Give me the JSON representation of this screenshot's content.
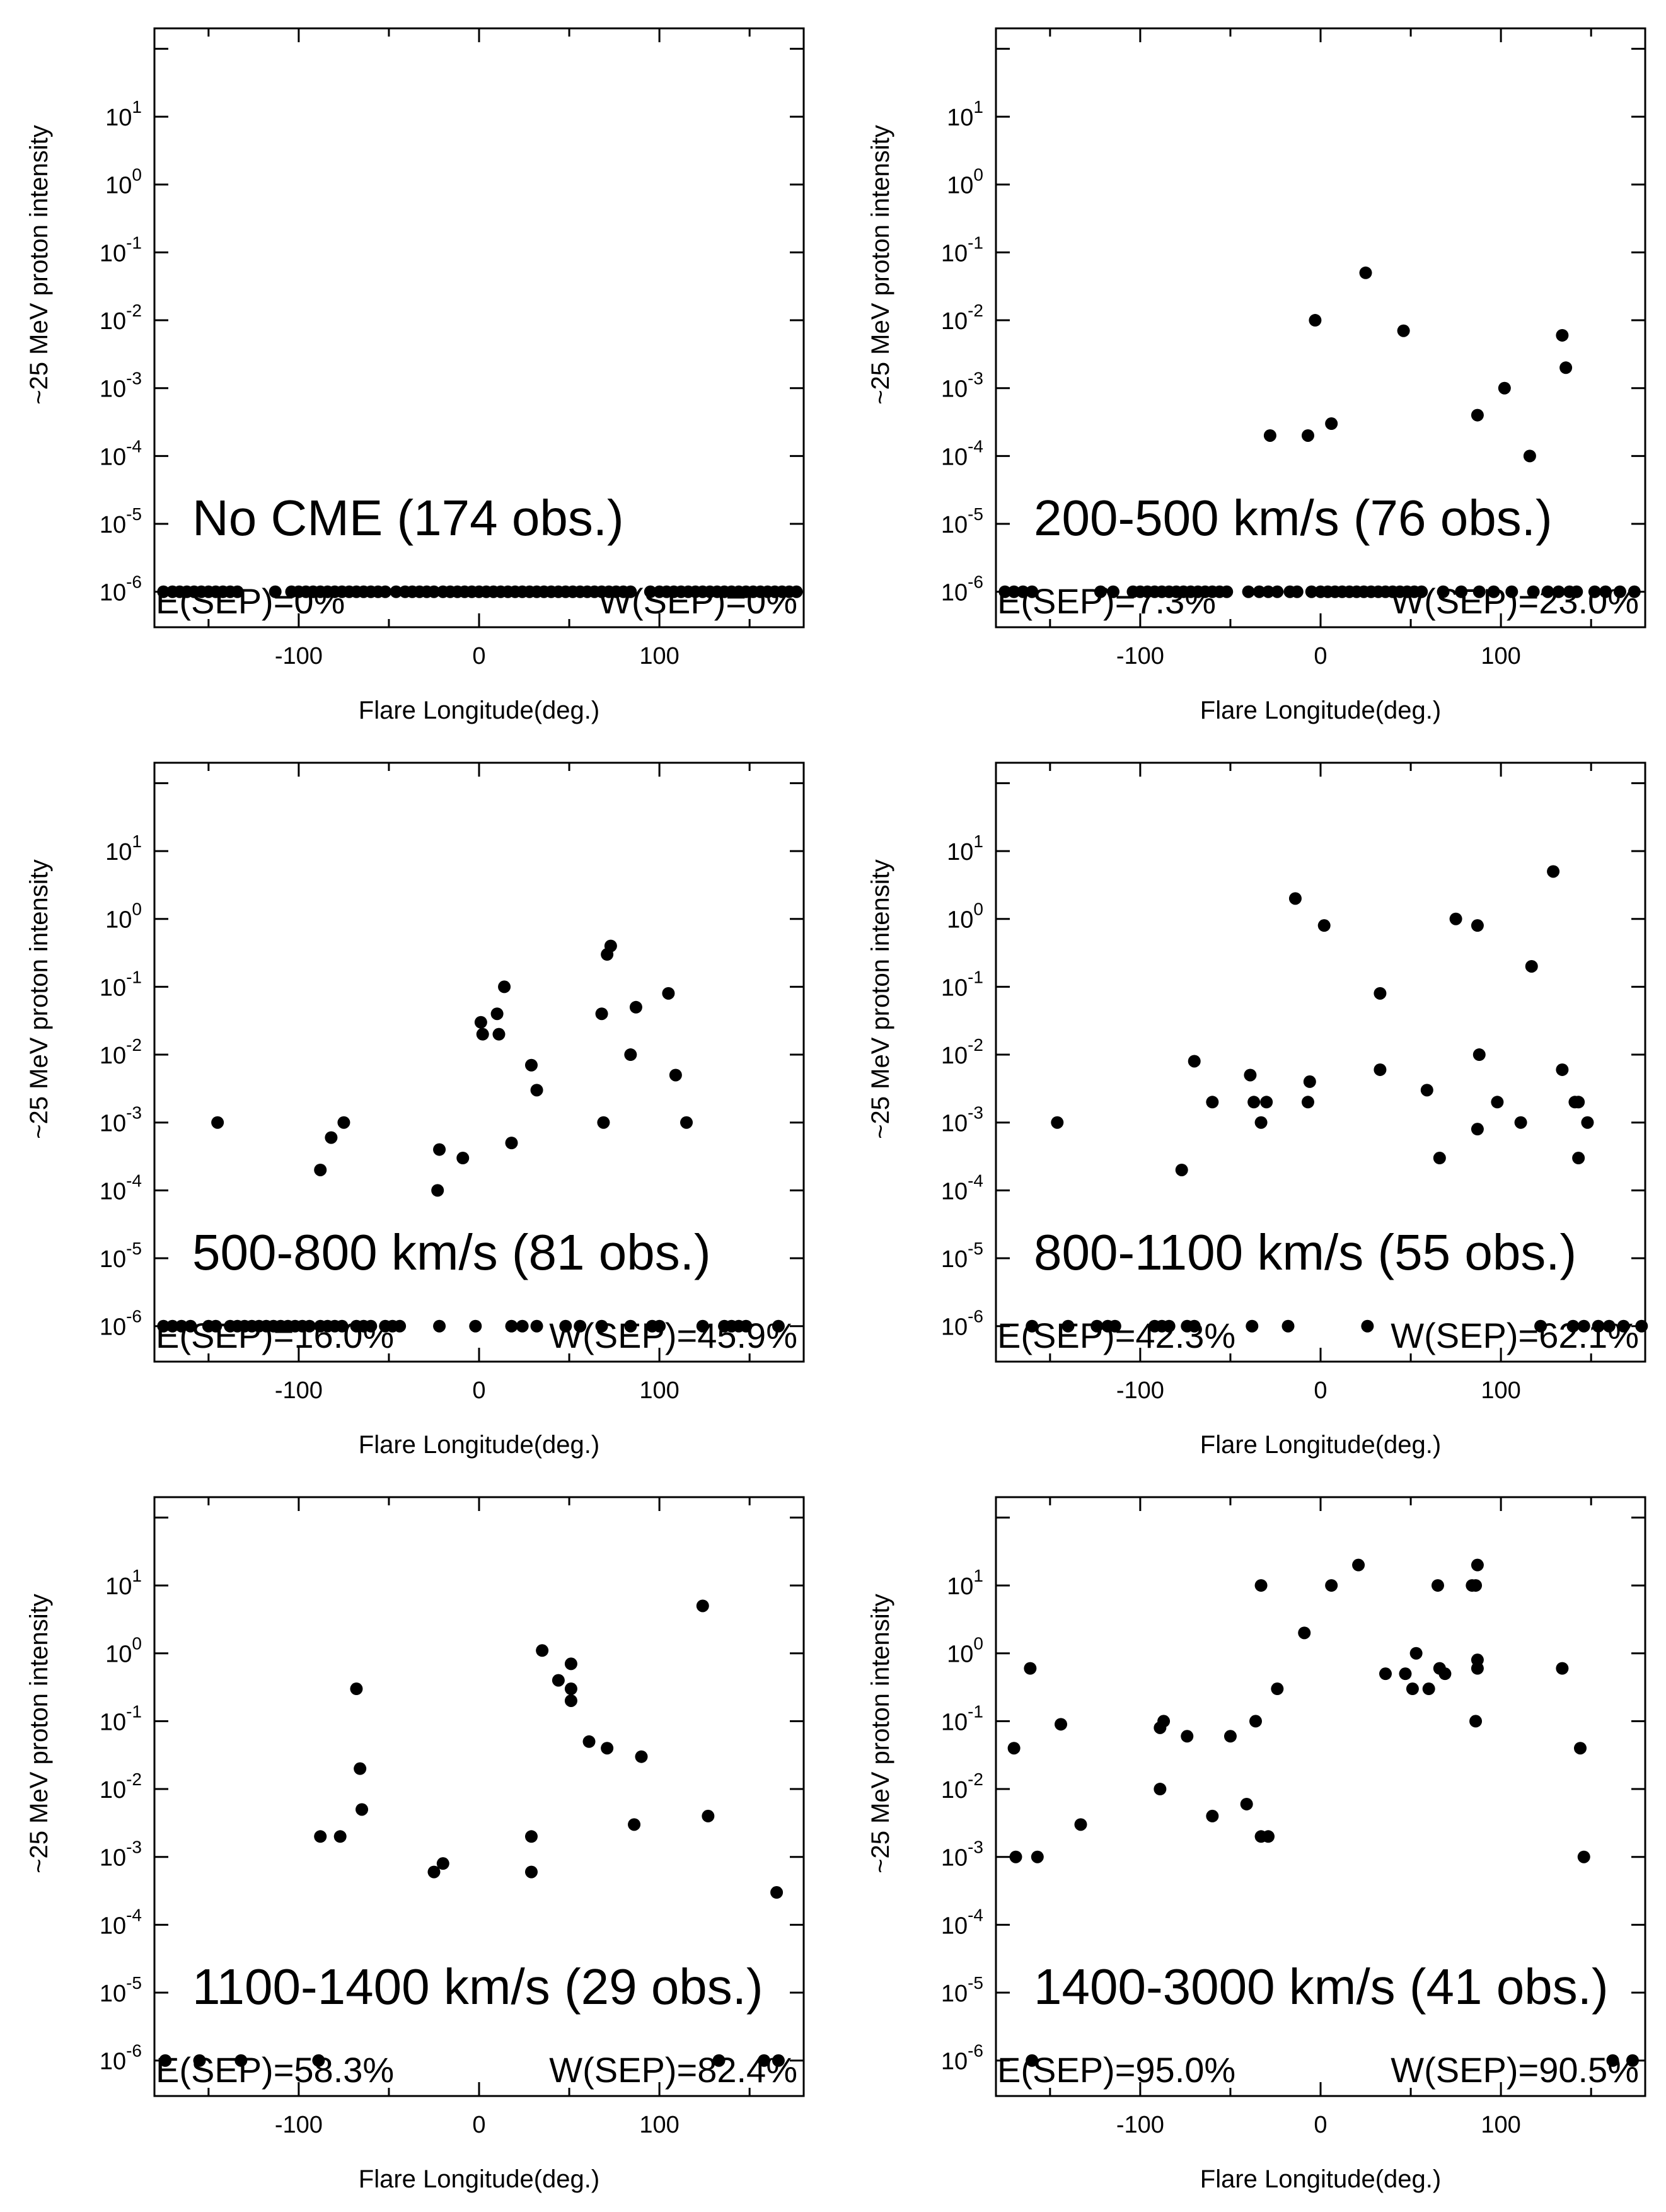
{
  "chart_data": [
    {
      "type": "scatter",
      "annotation": "No CME (174 obs.)",
      "e_sep": "E(SEP)=0%",
      "w_sep": "W(SEP)=0%",
      "xlabel": "Flare Longitude(deg.)",
      "ylabel": "~25 MeV proton intensity",
      "xlim": [
        -180,
        180
      ],
      "ylim": [
        3e-07,
        200
      ],
      "y_scale": "log",
      "baseline_y": 1e-06,
      "points": [],
      "baseline_x": [
        -175,
        -170,
        -166,
        -162,
        -158,
        -154,
        -150,
        -146,
        -142,
        -138,
        -134,
        -113,
        -104,
        -100,
        -96,
        -92,
        -88,
        -84,
        -80,
        -76,
        -72,
        -68,
        -64,
        -60,
        -56,
        -52,
        -46,
        -41,
        -37,
        -33,
        -29,
        -25,
        -20,
        -16,
        -12,
        -8,
        -4,
        0,
        4,
        8,
        12,
        16,
        20,
        24,
        28,
        32,
        36,
        40,
        44,
        48,
        52,
        56,
        60,
        64,
        68,
        72,
        76,
        80,
        84,
        95,
        100,
        104,
        108,
        112,
        116,
        120,
        124,
        128,
        132,
        136,
        140,
        144,
        148,
        152,
        156,
        160,
        164,
        168,
        172,
        176
      ]
    },
    {
      "type": "scatter",
      "annotation": "200-500 km/s (76 obs.)",
      "e_sep": "E(SEP)=7.3%",
      "w_sep": "W(SEP)=23.0%",
      "xlabel": "Flare Longitude(deg.)",
      "ylabel": "~25 MeV proton intensity",
      "xlim": [
        -180,
        180
      ],
      "ylim": [
        3e-07,
        200
      ],
      "y_scale": "log",
      "baseline_y": 1e-06,
      "points": [
        {
          "x": -28,
          "y": 0.0002
        },
        {
          "x": -3,
          "y": 0.01
        },
        {
          "x": -7,
          "y": 0.0002
        },
        {
          "x": 6,
          "y": 0.0003
        },
        {
          "x": 25,
          "y": 0.05
        },
        {
          "x": 46,
          "y": 0.007
        },
        {
          "x": 87,
          "y": 0.0004
        },
        {
          "x": 102,
          "y": 0.001
        },
        {
          "x": 116,
          "y": 0.0001
        },
        {
          "x": 134,
          "y": 0.006
        },
        {
          "x": 136,
          "y": 0.002
        }
      ],
      "baseline_x": [
        -175,
        -170,
        -165,
        -160,
        -122,
        -115,
        -104,
        -100,
        -96,
        -92,
        -88,
        -84,
        -80,
        -76,
        -72,
        -68,
        -64,
        -60,
        -56,
        -52,
        -40,
        -34,
        -29,
        -24,
        -17,
        -13,
        -5,
        0,
        4,
        8,
        12,
        16,
        20,
        24,
        28,
        32,
        36,
        40,
        44,
        48,
        52,
        56,
        68,
        78,
        88,
        96,
        106,
        118,
        126,
        132,
        138,
        142,
        152,
        158,
        166,
        174
      ]
    },
    {
      "type": "scatter",
      "annotation": "500-800 km/s (81 obs.)",
      "e_sep": "E(SEP)=16.0%",
      "w_sep": "W(SEP)=45.9%",
      "xlabel": "Flare Longitude(deg.)",
      "ylabel": "~25 MeV proton intensity",
      "xlim": [
        -180,
        180
      ],
      "ylim": [
        3e-07,
        200
      ],
      "y_scale": "log",
      "baseline_y": 1e-06,
      "points": [
        {
          "x": -145,
          "y": 0.001
        },
        {
          "x": -88,
          "y": 0.0002
        },
        {
          "x": -82,
          "y": 0.0006
        },
        {
          "x": -75,
          "y": 0.001
        },
        {
          "x": -23,
          "y": 0.0001
        },
        {
          "x": -22,
          "y": 0.0004
        },
        {
          "x": -9,
          "y": 0.0003
        },
        {
          "x": 1,
          "y": 0.03
        },
        {
          "x": 2,
          "y": 0.02
        },
        {
          "x": 10,
          "y": 0.04
        },
        {
          "x": 11,
          "y": 0.02
        },
        {
          "x": 14,
          "y": 0.1
        },
        {
          "x": 18,
          "y": 0.0005
        },
        {
          "x": 29,
          "y": 0.007
        },
        {
          "x": 32,
          "y": 0.003
        },
        {
          "x": 68,
          "y": 0.04
        },
        {
          "x": 69,
          "y": 0.001
        },
        {
          "x": 71,
          "y": 0.3
        },
        {
          "x": 73,
          "y": 0.4
        },
        {
          "x": 84,
          "y": 0.01
        },
        {
          "x": 87,
          "y": 0.05
        },
        {
          "x": 105,
          "y": 0.08
        },
        {
          "x": 109,
          "y": 0.005
        },
        {
          "x": 115,
          "y": 0.001
        }
      ],
      "baseline_x": [
        -175,
        -170,
        -165,
        -160,
        -150,
        -146,
        -138,
        -134,
        -130,
        -126,
        -122,
        -118,
        -114,
        -110,
        -106,
        -102,
        -98,
        -94,
        -88,
        -84,
        -80,
        -76,
        -68,
        -64,
        -60,
        -52,
        -48,
        -44,
        -22,
        -2,
        18,
        24,
        32,
        48,
        56,
        68,
        84,
        96,
        100,
        124,
        136,
        140,
        144,
        148,
        166
      ]
    },
    {
      "type": "scatter",
      "annotation": "800-1100 km/s (55 obs.)",
      "e_sep": "E(SEP)=42.3%",
      "w_sep": "W(SEP)=62.1%",
      "xlabel": "Flare Longitude(deg.)",
      "ylabel": "~25 MeV proton intensity",
      "xlim": [
        -180,
        180
      ],
      "ylim": [
        3e-07,
        200
      ],
      "y_scale": "log",
      "baseline_y": 1e-06,
      "points": [
        {
          "x": -146,
          "y": 0.001
        },
        {
          "x": -77,
          "y": 0.0002
        },
        {
          "x": -70,
          "y": 0.008
        },
        {
          "x": -60,
          "y": 0.002
        },
        {
          "x": -39,
          "y": 0.005
        },
        {
          "x": -37,
          "y": 0.002
        },
        {
          "x": -33,
          "y": 0.001
        },
        {
          "x": -30,
          "y": 0.002
        },
        {
          "x": -14,
          "y": 2
        },
        {
          "x": -7,
          "y": 0.002
        },
        {
          "x": -6,
          "y": 0.004
        },
        {
          "x": 2,
          "y": 0.8
        },
        {
          "x": 33,
          "y": 0.08
        },
        {
          "x": 33,
          "y": 0.006
        },
        {
          "x": 59,
          "y": 0.003
        },
        {
          "x": 66,
          "y": 0.0003
        },
        {
          "x": 75,
          "y": 1
        },
        {
          "x": 87,
          "y": 0.8
        },
        {
          "x": 88,
          "y": 0.01
        },
        {
          "x": 87,
          "y": 0.0008
        },
        {
          "x": 98,
          "y": 0.002
        },
        {
          "x": 111,
          "y": 0.001
        },
        {
          "x": 117,
          "y": 0.2
        },
        {
          "x": 129,
          "y": 5
        },
        {
          "x": 134,
          "y": 0.006
        },
        {
          "x": 141,
          "y": 0.002
        },
        {
          "x": 143,
          "y": 0.002
        },
        {
          "x": 143,
          "y": 0.0003
        },
        {
          "x": 148,
          "y": 0.001
        }
      ],
      "baseline_x": [
        -160,
        -140,
        -124,
        -118,
        -114,
        -92,
        -88,
        -84,
        -74,
        -70,
        -38,
        -18,
        26,
        122,
        140,
        146,
        154,
        160,
        168,
        178
      ]
    },
    {
      "type": "scatter",
      "annotation": "1100-1400 km/s (29 obs.)",
      "e_sep": "E(SEP)=58.3%",
      "w_sep": "W(SEP)=82.4%",
      "xlabel": "Flare Longitude(deg.)",
      "ylabel": "~25 MeV proton intensity",
      "xlim": [
        -180,
        180
      ],
      "ylim": [
        3e-07,
        200
      ],
      "y_scale": "log",
      "baseline_y": 1e-06,
      "points": [
        {
          "x": -88,
          "y": 0.002
        },
        {
          "x": -77,
          "y": 0.002
        },
        {
          "x": -68,
          "y": 0.3
        },
        {
          "x": -66,
          "y": 0.02
        },
        {
          "x": -65,
          "y": 0.005
        },
        {
          "x": -25,
          "y": 0.0006
        },
        {
          "x": -20,
          "y": 0.0008
        },
        {
          "x": 29,
          "y": 0.002
        },
        {
          "x": 29,
          "y": 0.0006
        },
        {
          "x": 35,
          "y": 1.1
        },
        {
          "x": 44,
          "y": 0.4
        },
        {
          "x": 51,
          "y": 0.7
        },
        {
          "x": 51,
          "y": 0.3
        },
        {
          "x": 51,
          "y": 0.2
        },
        {
          "x": 61,
          "y": 0.05
        },
        {
          "x": 71,
          "y": 0.04
        },
        {
          "x": 86,
          "y": 0.003
        },
        {
          "x": 90,
          "y": 0.03
        },
        {
          "x": 124,
          "y": 5
        },
        {
          "x": 127,
          "y": 0.004
        },
        {
          "x": 165,
          "y": 0.0003
        }
      ],
      "baseline_x": [
        -174,
        -155,
        -132,
        -89,
        133,
        158,
        166
      ]
    },
    {
      "type": "scatter",
      "annotation": "1400-3000 km/s (41 obs.)",
      "e_sep": "E(SEP)=95.0%",
      "w_sep": "W(SEP)=90.5%",
      "xlabel": "Flare Longitude(deg.)",
      "ylabel": "~25 MeV proton intensity",
      "xlim": [
        -180,
        180
      ],
      "ylim": [
        3e-07,
        200
      ],
      "y_scale": "log",
      "baseline_y": 1e-06,
      "points": [
        {
          "x": -170,
          "y": 0.04
        },
        {
          "x": -169,
          "y": 0.001
        },
        {
          "x": -161,
          "y": 0.6
        },
        {
          "x": -157,
          "y": 0.001
        },
        {
          "x": -144,
          "y": 0.09
        },
        {
          "x": -133,
          "y": 0.003
        },
        {
          "x": -89,
          "y": 0.01
        },
        {
          "x": -89,
          "y": 0.08
        },
        {
          "x": -87,
          "y": 0.1
        },
        {
          "x": -74,
          "y": 0.06
        },
        {
          "x": -60,
          "y": 0.004
        },
        {
          "x": -50,
          "y": 0.06
        },
        {
          "x": -41,
          "y": 0.006
        },
        {
          "x": -36,
          "y": 0.1
        },
        {
          "x": -33,
          "y": 0.002
        },
        {
          "x": -29,
          "y": 0.002
        },
        {
          "x": -33,
          "y": 10
        },
        {
          "x": -24,
          "y": 0.3
        },
        {
          "x": -9,
          "y": 2
        },
        {
          "x": 6,
          "y": 10
        },
        {
          "x": 21,
          "y": 20
        },
        {
          "x": 36,
          "y": 0.5
        },
        {
          "x": 47,
          "y": 0.5
        },
        {
          "x": 51,
          "y": 0.3
        },
        {
          "x": 53,
          "y": 1
        },
        {
          "x": 60,
          "y": 0.3
        },
        {
          "x": 65,
          "y": 10
        },
        {
          "x": 66,
          "y": 0.6
        },
        {
          "x": 69,
          "y": 0.5
        },
        {
          "x": 84,
          "y": 10
        },
        {
          "x": 86,
          "y": 10
        },
        {
          "x": 87,
          "y": 20
        },
        {
          "x": 87,
          "y": 0.8
        },
        {
          "x": 87,
          "y": 0.6
        },
        {
          "x": 86,
          "y": 0.1
        },
        {
          "x": 134,
          "y": 0.6
        },
        {
          "x": 144,
          "y": 0.04
        },
        {
          "x": 146,
          "y": 0.001
        }
      ],
      "baseline_x": [
        -160,
        162,
        173
      ]
    }
  ]
}
